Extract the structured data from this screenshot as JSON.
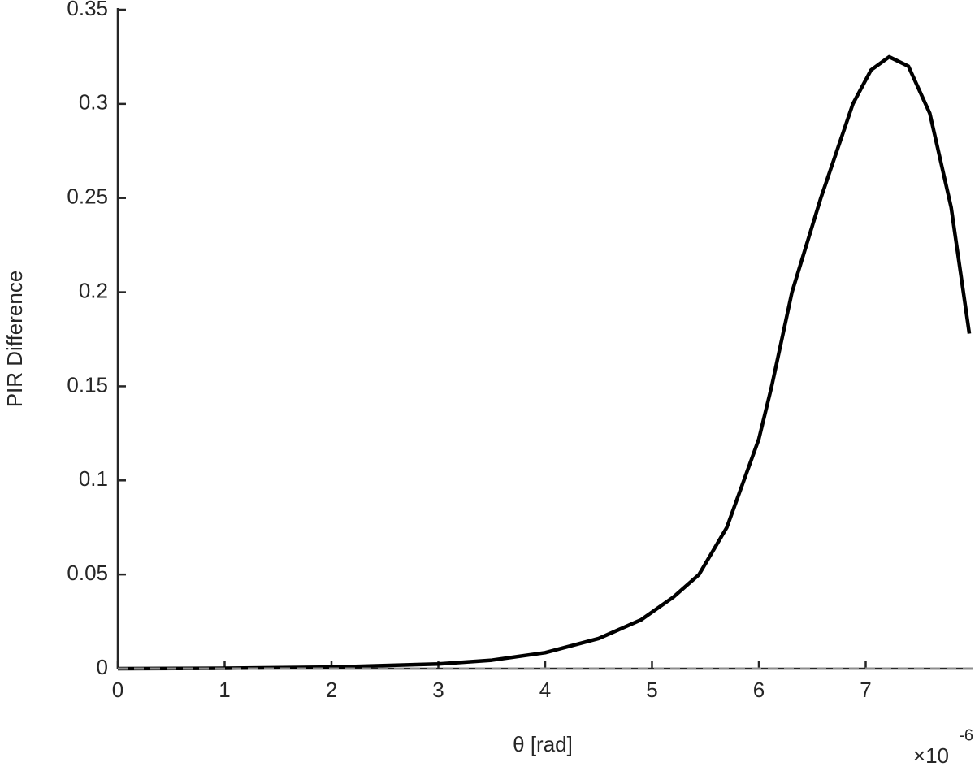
{
  "chart_data": {
    "type": "line",
    "x_label": "θ [rad]",
    "y_label": "PIR Difference",
    "x_multiplier": "×10",
    "x_exponent": "-6",
    "x": [
      0,
      1,
      2,
      3,
      3.5,
      4,
      4.5,
      4.9,
      5.2,
      5.44,
      5.7,
      5.86,
      6.0,
      6.12,
      6.31,
      6.58,
      6.88,
      7.05,
      7.22,
      7.4,
      7.6,
      7.8,
      7.97
    ],
    "series": [
      {
        "color": "#000000",
        "values": [
          0,
          0.0002,
          0.0008,
          0.0025,
          0.0045,
          0.0085,
          0.016,
          0.026,
          0.038,
          0.05,
          0.075,
          0.1,
          0.122,
          0.15,
          0.2,
          0.25,
          0.3,
          0.318,
          0.325,
          0.32,
          0.295,
          0.245,
          0.178
        ]
      }
    ],
    "xlim": [
      0,
      8
    ],
    "xticks": [
      0,
      1,
      2,
      3,
      4,
      5,
      6,
      7
    ],
    "ylim": [
      0,
      0.35
    ],
    "yticks": [
      0,
      0.05,
      0.1,
      0.15,
      0.2,
      0.25,
      0.3,
      0.35
    ],
    "hline": 0,
    "hline_color": "#8c8c8c",
    "grid": false
  }
}
